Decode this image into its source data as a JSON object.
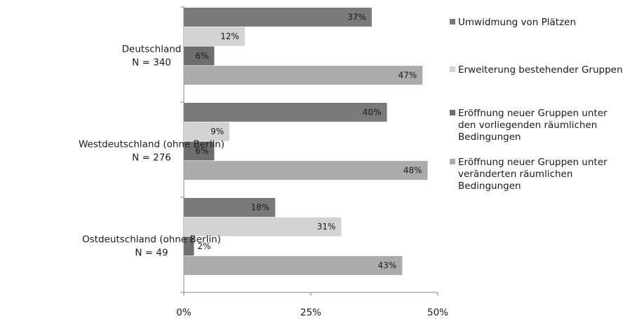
{
  "chart_data": {
    "type": "bar",
    "orientation": "horizontal",
    "groups": [
      {
        "label": [
          "Deutschland",
          "N = 340"
        ]
      },
      {
        "label": [
          "Westdeutschland (ohne Berlin)",
          "N = 276"
        ]
      },
      {
        "label": [
          "Ostdeutschland (ohne Berlin)",
          "N = 49"
        ]
      }
    ],
    "series": [
      {
        "name": "Umwidmung von Plätzen",
        "legend_lines": [
          "Umwidmung von Plätzen"
        ],
        "color": "#7a7a7a",
        "values": [
          37,
          40,
          18
        ]
      },
      {
        "name": "Erweiterung bestehender Gruppen",
        "legend_lines": [
          "Erweiterung bestehender Gruppen"
        ],
        "color": "#d2d2d2",
        "values": [
          12,
          9,
          31
        ]
      },
      {
        "name": "Eröffnung neuer Gruppen unter den vorliegenden räumlichen Bedingungen",
        "legend_lines": [
          "Eröffnung neuer Gruppen unter",
          "den vorliegenden räumlichen",
          "Bedingungen"
        ],
        "color": "#6e6e6e",
        "values": [
          6,
          6,
          2
        ]
      },
      {
        "name": "Eröffnung neuer Gruppen unter veränderten räumlichen Bedingungen",
        "legend_lines": [
          "Eröffnung neuer Gruppen unter",
          "veränderten räumlichen",
          "Bedingungen"
        ],
        "color": "#ababab",
        "values": [
          47,
          48,
          43
        ]
      }
    ],
    "value_suffix": "%",
    "xlim": [
      0,
      50
    ],
    "xticks": [
      0,
      25,
      50
    ],
    "xtick_labels": [
      "0%",
      "25%",
      "50%"
    ],
    "grid": false,
    "legend_position": "right"
  }
}
